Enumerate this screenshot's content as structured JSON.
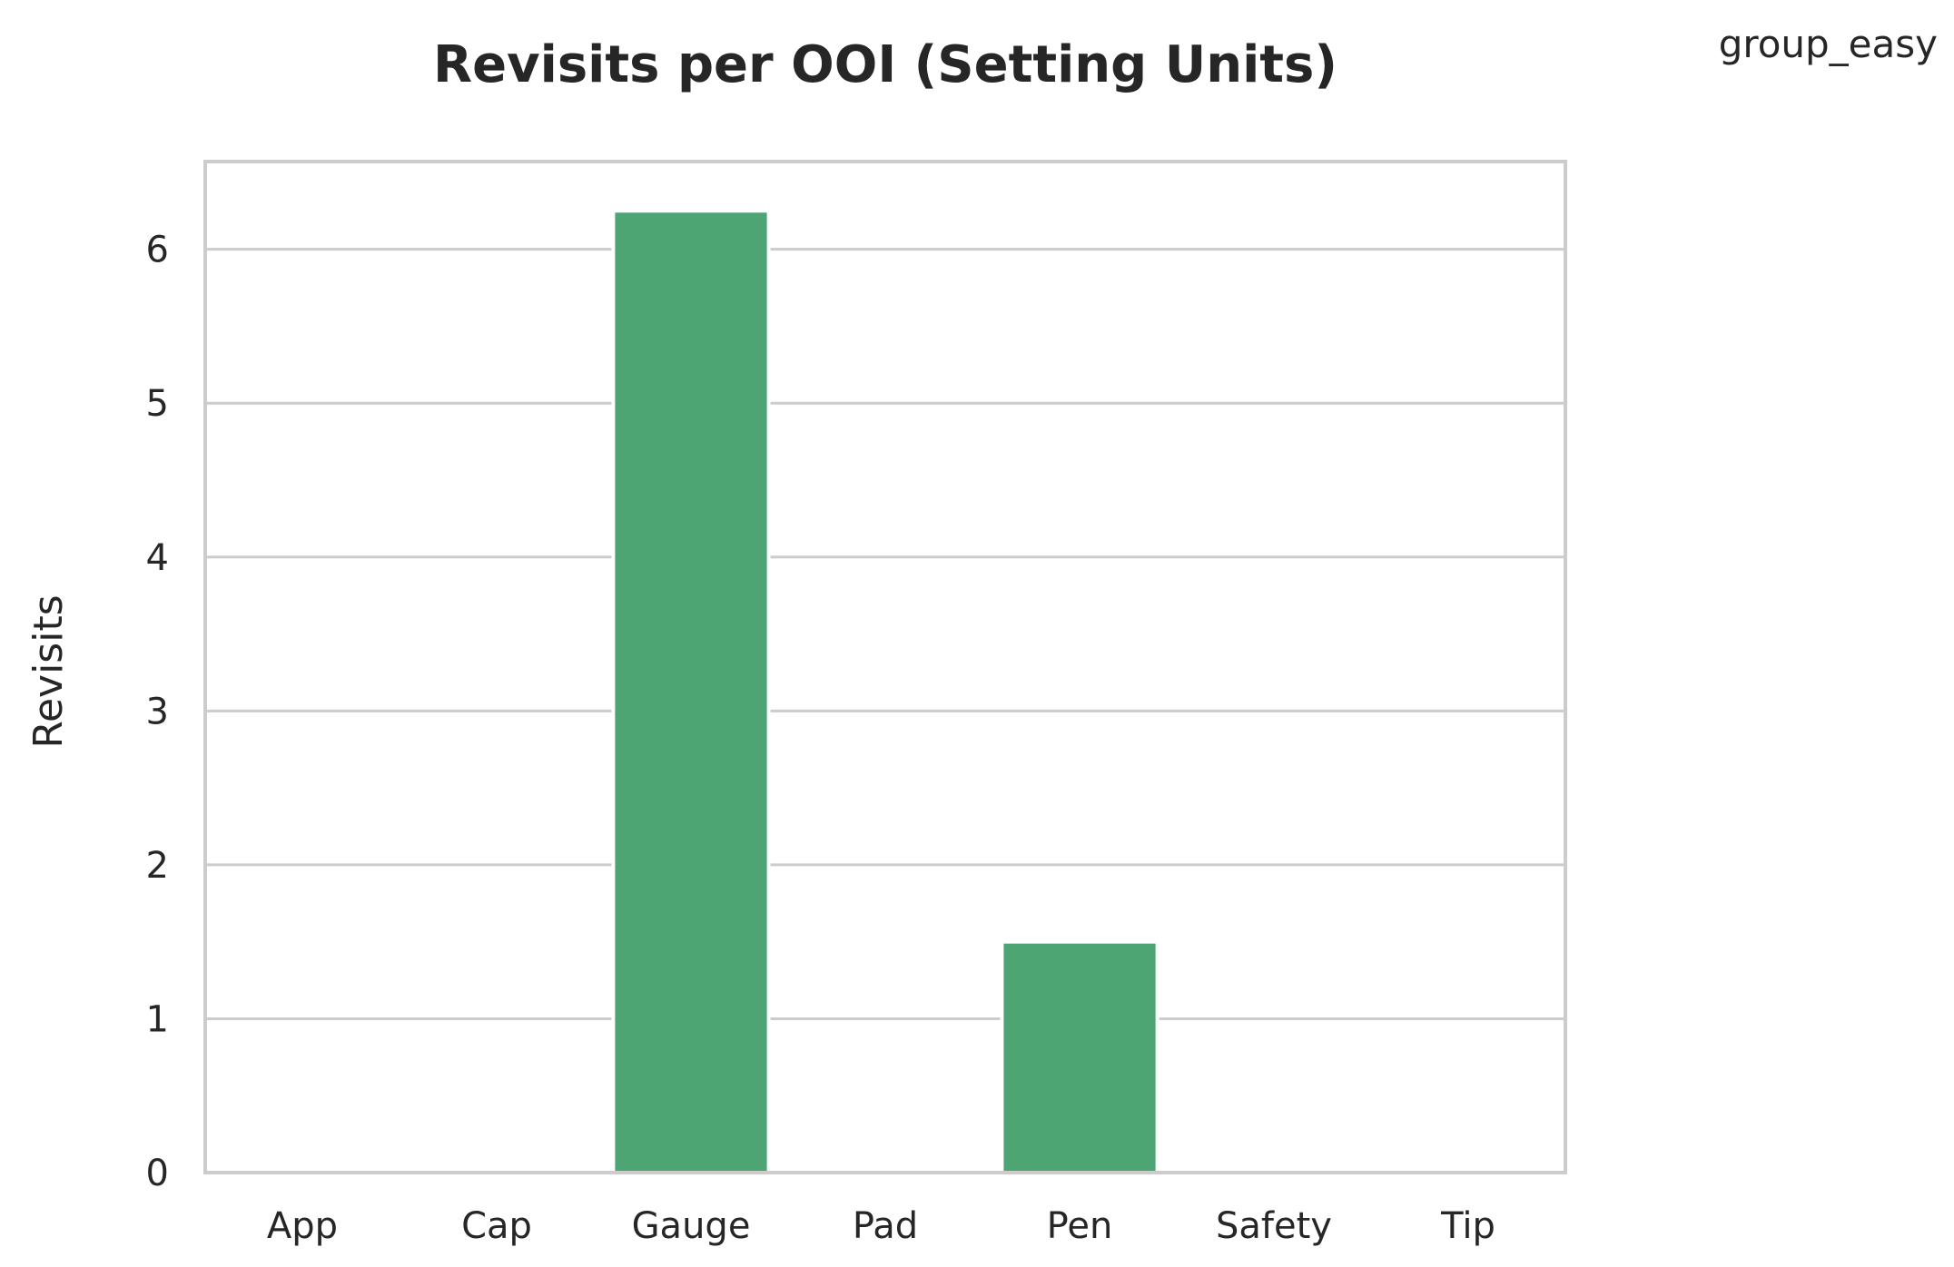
{
  "chart_data": {
    "type": "bar",
    "title": "Revisits per OOI (Setting Units)",
    "legend": "group_easy",
    "legend_position": "top-right",
    "xlabel": "",
    "ylabel": "Revisits",
    "categories": [
      "App",
      "Cap",
      "Gauge",
      "Pad",
      "Pen",
      "Safety",
      "Tip"
    ],
    "series": [
      {
        "name": "group_easy",
        "values": [
          0,
          0,
          6.25,
          0,
          1.5,
          0,
          0
        ]
      }
    ],
    "ylim": [
      0,
      6.57
    ],
    "yticks": [
      0,
      1,
      2,
      3,
      4,
      5,
      6
    ],
    "grid": true,
    "colors": {
      "bar": "#4ea574",
      "grid": "#cccccc",
      "text": "#262626"
    }
  }
}
